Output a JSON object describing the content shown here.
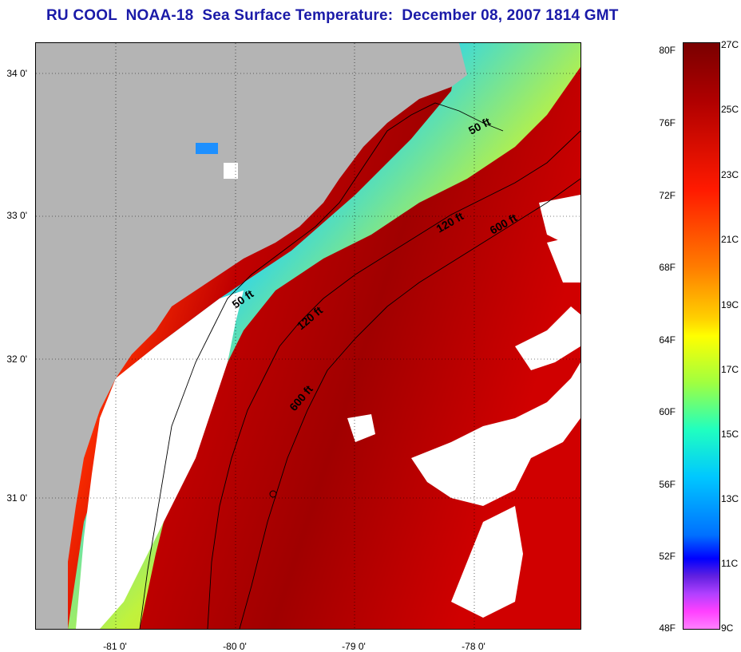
{
  "title": "RU COOL  NOAA-18  Sea Surface Temperature:  December 08, 2007 1814 GMT",
  "map": {
    "latitude_labels": [
      "34 0'",
      "33 0'",
      "32 0'",
      "31 0'"
    ],
    "longitude_labels": [
      "-81 0'",
      "-80 0'",
      "-79 0'",
      "-78 0'"
    ],
    "depth_contours": [
      "50 ft",
      "50 ft",
      "120 ft",
      "120 ft",
      "600 ft",
      "600 ft"
    ],
    "colors": {
      "land": "#b4b4b4",
      "cloud": "#ffffff",
      "warm": "#a00000",
      "hot": "#e01010",
      "cold": "#00a8ff"
    }
  },
  "colorbar": {
    "fahrenheit": [
      "80F",
      "76F",
      "72F",
      "68F",
      "64F",
      "60F",
      "56F",
      "52F",
      "48F"
    ],
    "celsius": [
      "27C",
      "25C",
      "23C",
      "21C",
      "19C",
      "17C",
      "15C",
      "13C",
      "11C",
      "9C"
    ]
  }
}
